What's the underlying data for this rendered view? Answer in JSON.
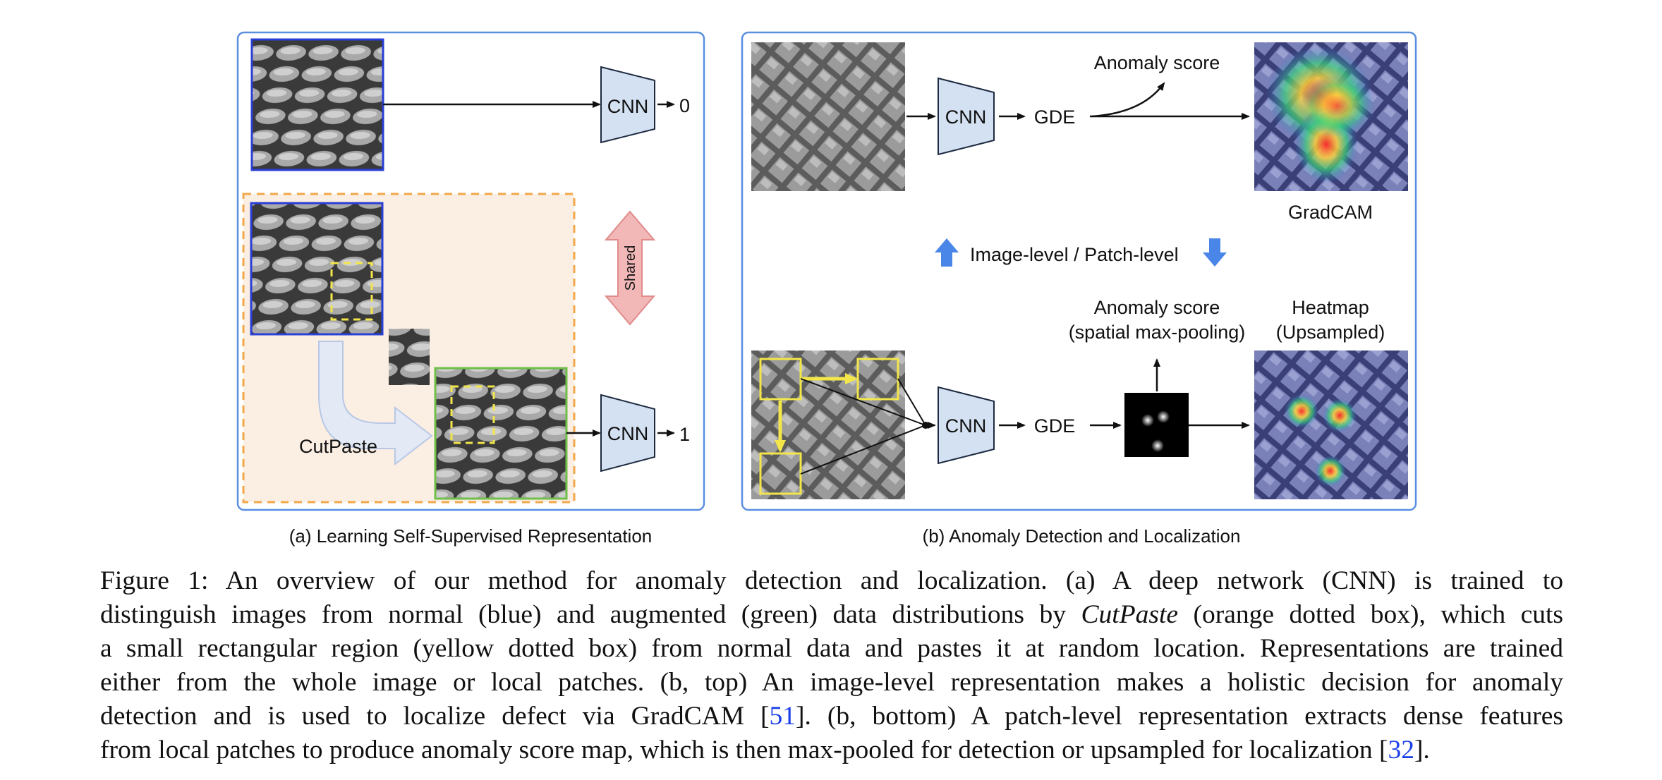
{
  "panel_a": {
    "cnn_top": "CNN",
    "out_top": "0",
    "cnn_bottom": "CNN",
    "out_bottom": "1",
    "shared": "Shared",
    "cutpaste": "CutPaste",
    "subcaption": "(a) Learning Self-Supervised Representation"
  },
  "panel_b": {
    "cnn_top": "CNN",
    "gde_top": "GDE",
    "anomaly_score_top": "Anomaly score",
    "gradcam": "GradCAM",
    "level_toggle": "Image-level / Patch-level",
    "anomaly_score_bottom_1": "Anomaly score",
    "anomaly_score_bottom_2": "(spatial max-pooling)",
    "heatmap_1": "Heatmap",
    "heatmap_2": "(Upsampled)",
    "cnn_bottom": "CNN",
    "gde_bottom": "GDE",
    "subcaption": "(b) Anomaly Detection and Localization"
  },
  "caption": {
    "l1": "Figure 1:  An overview of our method for anomaly detection and localization.  (a) A deep network (CNN) is trained to",
    "l2a": "distinguish images from normal (blue) and augmented (green) data distributions by ",
    "l2b": "CutPaste",
    "l2c": " (orange dotted box), which cuts",
    "l3": "a small rectangular region (yellow dotted box) from normal data and pastes it at random location. Representations are trained",
    "l4": "either from the whole image or local patches.  (b, top) An image-level representation makes a holistic decision for anomaly",
    "l5a": "detection and is used to localize defect via GradCAM [",
    "ref51": "51",
    "l5b": "].  (b, bottom) A patch-level representation extracts dense features",
    "l6a": "from local patches to produce anomaly score map, which is then max-pooled for detection or upsampled for localization [",
    "ref32": "32",
    "l6b": "]."
  },
  "colors": {
    "panel_border": "#5a8fe0",
    "cnn_fill": "#d4e1f2",
    "normal_border": "#2a3fd6",
    "augmented_border": "#6fbf4a",
    "cutpaste_box": "#f2a84a",
    "cutpaste_fill": "#fbeee2",
    "patch_yellow": "#f2e64a",
    "shared_arrow": "#f2b8b8",
    "level_arrow": "#4a86e8"
  }
}
